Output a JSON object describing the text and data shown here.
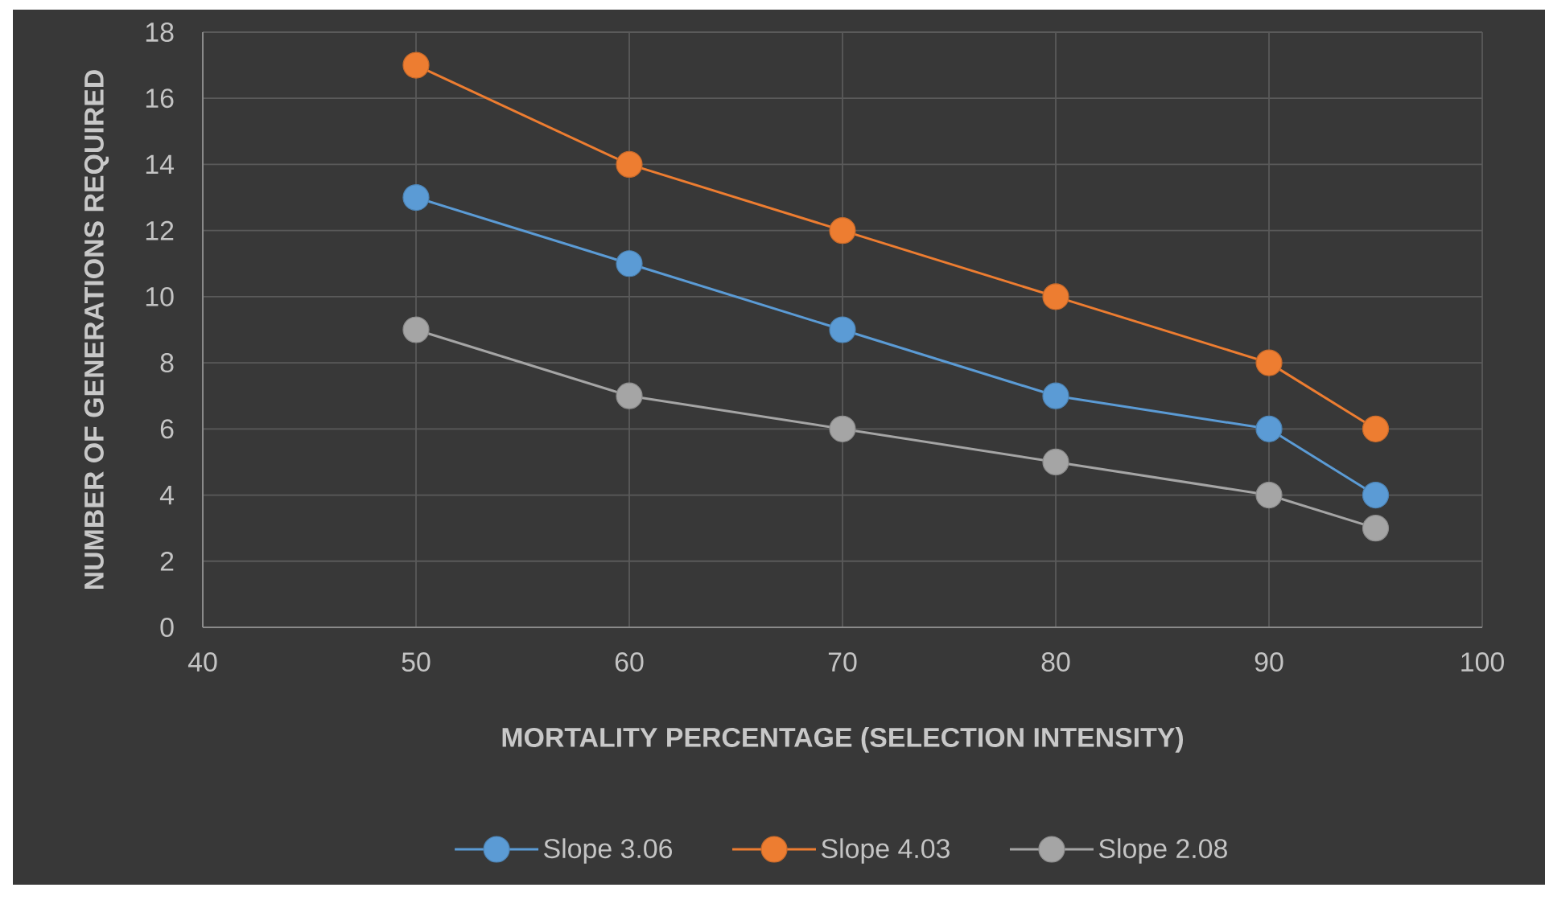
{
  "chart_data": {
    "type": "line",
    "xlabel": "MORTALITY PERCENTAGE (SELECTION INTENSITY)",
    "ylabel": "NUMBER OF GENERATIONS REQUIRED",
    "x": [
      50,
      60,
      70,
      80,
      90,
      95
    ],
    "series": [
      {
        "name": "Slope 3.06",
        "color": "#5b9bd5",
        "values": [
          13,
          11,
          9,
          7,
          6,
          4
        ]
      },
      {
        "name": "Slope 4.03",
        "color": "#ed7d31",
        "values": [
          17,
          14,
          12,
          10,
          8,
          6
        ]
      },
      {
        "name": "Slope 2.08",
        "color": "#a5a5a5",
        "values": [
          9,
          7,
          6,
          5,
          4,
          3
        ]
      }
    ],
    "xlim": [
      40,
      100
    ],
    "xticks": [
      40,
      50,
      60,
      70,
      80,
      90,
      100
    ],
    "ylim": [
      0,
      18
    ],
    "yticks": [
      0,
      2,
      4,
      6,
      8,
      10,
      12,
      14,
      16,
      18
    ],
    "grid": true,
    "legend": "bottom",
    "marker": "circle",
    "line_style": "solid"
  }
}
